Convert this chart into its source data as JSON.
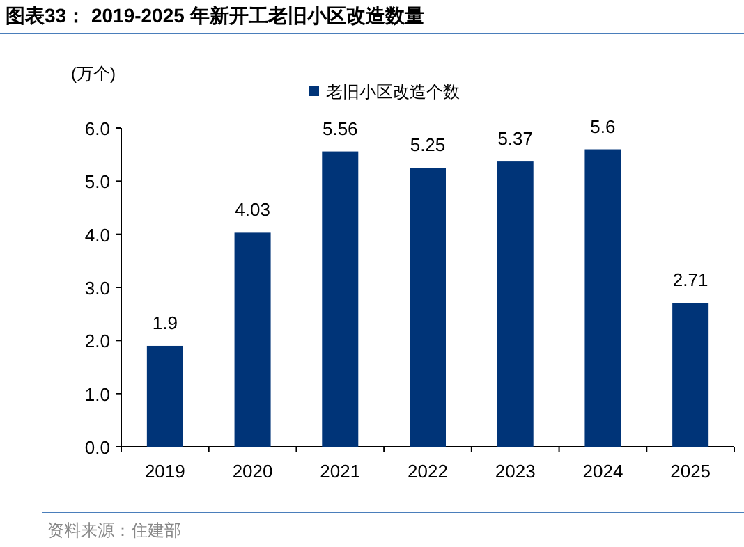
{
  "chart_data": {
    "type": "bar",
    "title": "图表33： 2019-2025 年新开工老旧小区改造数量",
    "ylabel": "(万个)",
    "categories": [
      "2019",
      "2020",
      "2021",
      "2022",
      "2023",
      "2024",
      "2025"
    ],
    "series": [
      {
        "name": "老旧小区改造个数",
        "color": "#003478",
        "values": [
          1.9,
          4.03,
          5.56,
          5.25,
          5.37,
          5.6,
          2.71
        ]
      }
    ],
    "ylim": [
      0,
      6
    ],
    "yticks": [
      {
        "value": 0,
        "label": "0.0"
      },
      {
        "value": 1,
        "label": "1.0"
      },
      {
        "value": 2,
        "label": "2.0"
      },
      {
        "value": 3,
        "label": "3.0"
      },
      {
        "value": 4,
        "label": "4.0"
      },
      {
        "value": 5,
        "label": "5.0"
      },
      {
        "value": 6,
        "label": "6.0"
      }
    ],
    "data_labels": true,
    "legend": "top",
    "grid": false,
    "annotations": [
      "资料来源：住建部"
    ]
  }
}
